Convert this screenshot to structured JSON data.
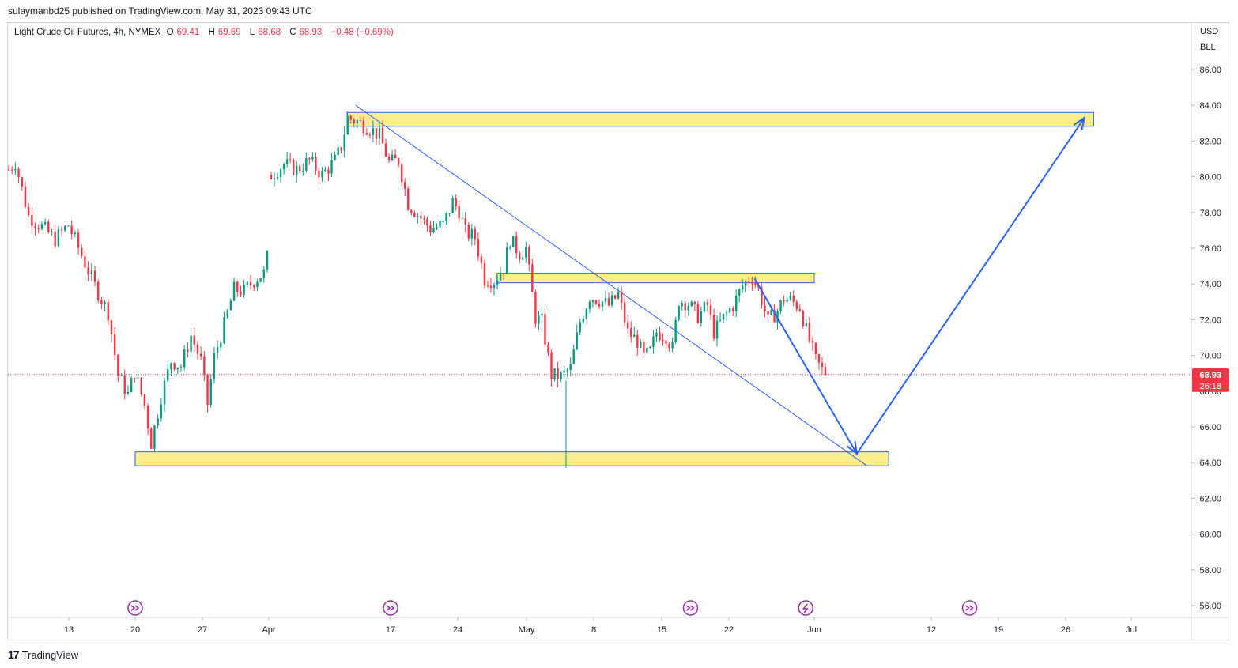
{
  "caption": "sulaymanbd25 published on TradingView.com, May 31, 2023 09:43 UTC",
  "legend": {
    "symbol": "Light Crude Oil Futures, 4h, NYMEX",
    "open_label": "O",
    "open": "69.41",
    "high_label": "H",
    "high": "69.69",
    "low_label": "L",
    "low": "68.68",
    "close_label": "C",
    "close": "68.93",
    "change": "−0.48 (−0.69%)"
  },
  "price_axis": {
    "currency": "USD",
    "unit": "BLL",
    "ticks": [
      "86.00",
      "84.00",
      "82.00",
      "80.00",
      "78.00",
      "76.00",
      "74.00",
      "72.00",
      "70.00",
      "68.00",
      "66.00",
      "64.00",
      "62.00",
      "60.00",
      "58.00",
      "56.00"
    ],
    "last_price": "68.93",
    "countdown": "26:18"
  },
  "time_axis": {
    "ticks": [
      "13",
      "20",
      "27",
      "Apr",
      "17",
      "24",
      "May",
      "8",
      "15",
      "22",
      "Jun",
      "12",
      "19",
      "26",
      "Jul"
    ]
  },
  "brand": "TradingView",
  "colors": {
    "up": "#089981",
    "down": "#f23645",
    "zone_fill": "#fbee8c",
    "zone_border": "#2962ff",
    "trend": "#2962ff",
    "event_icon": "#9c27b0"
  },
  "chart_data": {
    "type": "candlestick",
    "symbol": "Light Crude Oil Futures",
    "interval": "4h",
    "exchange": "NYMEX",
    "ylim": [
      55.2,
      87.8
    ],
    "x_ticks": [
      "13",
      "20",
      "27",
      "Apr",
      "17",
      "24",
      "May",
      "8",
      "15",
      "22",
      "Jun",
      "12",
      "19",
      "26",
      "Jul"
    ],
    "price_path": [
      [
        0,
        80.4
      ],
      [
        2,
        80.8
      ],
      [
        6,
        77.8
      ],
      [
        10,
        77.2
      ],
      [
        14,
        76.5
      ],
      [
        18,
        77.3
      ],
      [
        22,
        75.6
      ],
      [
        26,
        73.9
      ],
      [
        30,
        72.4
      ],
      [
        33,
        68.9
      ],
      [
        36,
        67.8
      ],
      [
        38,
        69.1
      ],
      [
        41,
        67.2
      ],
      [
        43,
        65.1
      ],
      [
        46,
        67.7
      ],
      [
        49,
        69.7
      ],
      [
        52,
        69.4
      ],
      [
        55,
        71.1
      ],
      [
        58,
        69.7
      ],
      [
        60,
        67.3
      ],
      [
        62,
        69.9
      ],
      [
        65,
        71.7
      ],
      [
        68,
        73.7
      ],
      [
        71,
        73.6
      ],
      [
        74,
        74.2
      ],
      [
        77,
        74.6
      ],
      [
        78,
        75.5
      ],
      [
        80,
        80.1
      ],
      [
        84,
        80.7
      ],
      [
        88,
        80.4
      ],
      [
        92,
        80.9
      ],
      [
        96,
        80.1
      ],
      [
        100,
        80.9
      ],
      [
        102,
        81.7
      ],
      [
        104,
        83.3
      ],
      [
        107,
        83.1
      ],
      [
        111,
        82.7
      ],
      [
        114,
        82.3
      ],
      [
        117,
        80.8
      ],
      [
        120,
        80.9
      ],
      [
        123,
        78.5
      ],
      [
        127,
        77.7
      ],
      [
        130,
        77.1
      ],
      [
        134,
        77.3
      ],
      [
        137,
        78.6
      ],
      [
        139,
        78.1
      ],
      [
        141,
        76.9
      ],
      [
        144,
        76.6
      ],
      [
        147,
        74.3
      ],
      [
        150,
        74.2
      ],
      [
        153,
        74.9
      ],
      [
        155,
        76.5
      ],
      [
        158,
        75.7
      ],
      [
        160,
        76.0
      ],
      [
        163,
        72.1
      ],
      [
        165,
        71.9
      ],
      [
        168,
        68.9
      ],
      [
        171,
        68.8
      ],
      [
        174,
        69.3
      ],
      [
        177,
        71.9
      ],
      [
        180,
        73.3
      ],
      [
        183,
        73.1
      ],
      [
        186,
        72.8
      ],
      [
        189,
        73.4
      ],
      [
        192,
        71.3
      ],
      [
        195,
        70.8
      ],
      [
        197,
        69.9
      ],
      [
        199,
        70.2
      ],
      [
        201,
        71.3
      ],
      [
        204,
        71.1
      ],
      [
        206,
        70.4
      ],
      [
        208,
        73.1
      ],
      [
        211,
        72.9
      ],
      [
        214,
        72.2
      ],
      [
        217,
        72.8
      ],
      [
        219,
        71.3
      ],
      [
        222,
        72.1
      ],
      [
        225,
        72.8
      ],
      [
        228,
        73.9
      ],
      [
        231,
        74.4
      ],
      [
        233,
        73.7
      ],
      [
        236,
        71.9
      ],
      [
        239,
        72.5
      ],
      [
        241,
        73.2
      ],
      [
        243,
        73.1
      ],
      [
        246,
        72.7
      ],
      [
        248,
        71.4
      ],
      [
        251,
        69.7
      ],
      [
        254,
        68.93
      ]
    ],
    "last_price": 68.93,
    "annotations": {
      "zones": [
        {
          "from": "Mar 20",
          "to": "Jun 8",
          "low": 64.0,
          "high": 64.6
        },
        {
          "from": "Apr 28",
          "to": "Jun 1",
          "low": 74.3,
          "high": 74.6
        },
        {
          "from": "Apr 12",
          "to": "Jun 29",
          "low": 83.0,
          "high": 83.6
        }
      ],
      "trendline": {
        "from": [
          "Apr 13",
          84.0
        ],
        "to": [
          "Jun 6",
          63.8
        ]
      },
      "projection": [
        [
          "May 25",
          74.3
        ],
        [
          "Jun 5",
          64.5
        ],
        [
          "Jun 28",
          83.3
        ]
      ]
    },
    "events": [
      {
        "type": "rollover",
        "date": "Mar 20"
      },
      {
        "type": "rollover",
        "date": "Apr 17"
      },
      {
        "type": "rollover",
        "date": "May 18"
      },
      {
        "type": "flash",
        "date": "May 31"
      },
      {
        "type": "rollover",
        "date": "Jun 16"
      }
    ]
  }
}
